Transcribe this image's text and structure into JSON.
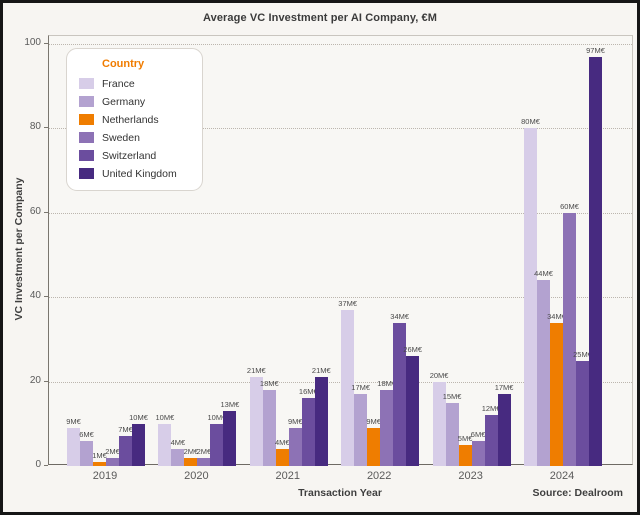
{
  "chart_data": {
    "type": "bar",
    "title": "Average VC Investment per AI Company, €M",
    "xlabel": "Transaction Year",
    "ylabel": "VC Investment per Company",
    "source": "Source: Dealroom",
    "legend_title": "Country",
    "legend_position": "top-left inset",
    "grid": "horizontal dotted",
    "categories": [
      "2019",
      "2020",
      "2021",
      "2022",
      "2023",
      "2024"
    ],
    "yticks": [
      0,
      20,
      40,
      60,
      80,
      100
    ],
    "ylim": [
      0,
      100
    ],
    "value_suffix": "M€",
    "series": [
      {
        "name": "France",
        "color": "#d7cde8",
        "values": [
          9,
          10,
          21,
          37,
          20,
          80
        ]
      },
      {
        "name": "Germany",
        "color": "#b3a2d0",
        "values": [
          6,
          4,
          18,
          17,
          15,
          44
        ]
      },
      {
        "name": "Netherlands",
        "color": "#ef7d00",
        "values": [
          1,
          2,
          4,
          9,
          5,
          34
        ]
      },
      {
        "name": "Sweden",
        "color": "#8d72b5",
        "values": [
          2,
          2,
          9,
          18,
          6,
          60
        ]
      },
      {
        "name": "Switzerland",
        "color": "#6b4d9e",
        "values": [
          7,
          10,
          16,
          34,
          12,
          25
        ]
      },
      {
        "name": "United Kingdom",
        "color": "#472a80",
        "values": [
          10,
          13,
          21,
          26,
          17,
          97
        ]
      }
    ]
  }
}
